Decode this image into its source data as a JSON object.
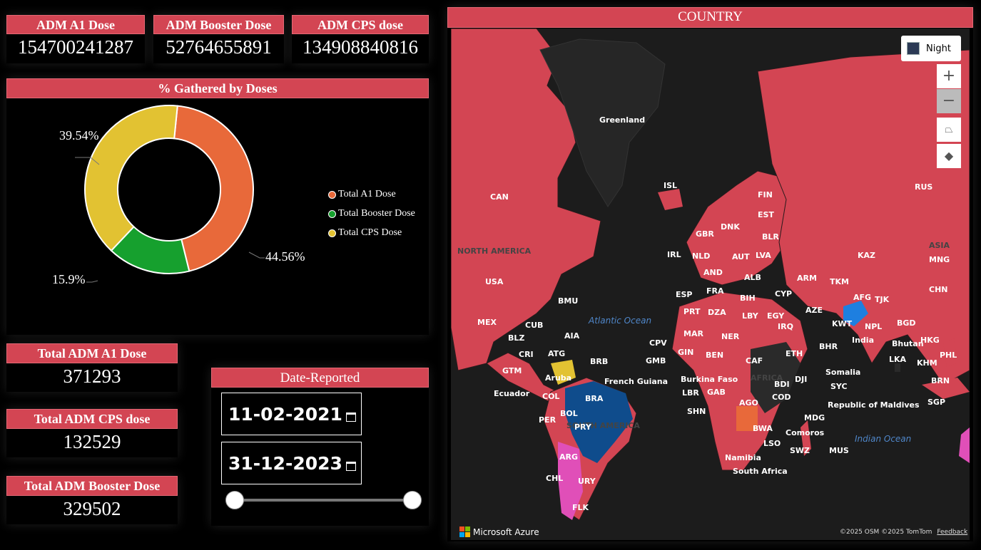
{
  "kpis_top": [
    {
      "label": "ADM A1 Dose",
      "value": "154700241287"
    },
    {
      "label": "ADM Booster Dose",
      "value": "52764655891"
    },
    {
      "label": "ADM CPS dose",
      "value": "134908840816"
    }
  ],
  "donut": {
    "title": "% Gathered by Doses",
    "legend": [
      "Total A1 Dose",
      "Total Booster Dose",
      "Total CPS Dose"
    ],
    "labels": {
      "a1": "44.56%",
      "booster": "15.9%",
      "cps": "39.54%"
    }
  },
  "chart_data": {
    "type": "pie",
    "title": "% Gathered by Doses",
    "categories": [
      "Total A1 Dose",
      "Total Booster Dose",
      "Total CPS Dose"
    ],
    "values": [
      44.56,
      15.9,
      39.54
    ],
    "colors": [
      "#e8693a",
      "#16a02e",
      "#e2c232"
    ],
    "legend": "right"
  },
  "kpis_small": [
    {
      "label": "Total ADM A1 Dose",
      "value": "371293"
    },
    {
      "label": "Total ADM CPS dose",
      "value": "132529"
    },
    {
      "label": "Total ADM Booster Dose",
      "value": "329502"
    }
  ],
  "date_filter": {
    "title": "Date-Reported",
    "start": "11-02-2021",
    "end": "31-12-2023"
  },
  "map": {
    "title": "COUNTRY",
    "style_button": "Night",
    "zoom_in": "+",
    "zoom_out": "−",
    "brand": "Microsoft Azure",
    "attribution": "©2025 OSM  ©2025 TomTom",
    "feedback": "Feedback",
    "oceans": [
      "Atlantic Ocean",
      "Indian Ocean"
    ],
    "regions": [
      "NORTH AMERICA",
      "SOUTH AMERICA",
      "AFRICA",
      "ASIA"
    ],
    "country_labels": [
      "Greenland",
      "CAN",
      "ISL",
      "FIN",
      "EST",
      "RUS",
      "DNK",
      "GBR",
      "BLR",
      "LVA",
      "NLD",
      "AUT",
      "KAZ",
      "MNG",
      "IRL",
      "AND",
      "ALB",
      "ARM",
      "TKM",
      "CHN",
      "USA",
      "ESP",
      "FRA",
      "BIH",
      "CYP",
      "AFG",
      "TJK",
      "BMU",
      "PRT",
      "DZA",
      "LBY",
      "EGY",
      "AZE",
      "KWT",
      "NPL",
      "BGD",
      "MEX",
      "CUB",
      "BLZ",
      "AIA",
      "MAR",
      "NER",
      "IRQ",
      "India",
      "HKG",
      "CPV",
      "BHR",
      "Bhutan",
      "CRI",
      "ATG",
      "BRB",
      "GIN",
      "BEN",
      "CAF",
      "ETH",
      "PHL",
      "GMB",
      "LKA",
      "KHM",
      "GTM",
      "Aruba",
      "French Guiana",
      "Burkina Faso",
      "DJI",
      "Somalia",
      "BRN",
      "BDI",
      "SYC",
      "Ecuador",
      "COL",
      "BRA",
      "LBR",
      "GAB",
      "COD",
      "SGP",
      "Republic of Maldives",
      "AGO",
      "SHN",
      "BOL",
      "PER",
      "MDG",
      "PRY",
      "BWA",
      "Comoros",
      "LSO",
      "SWZ",
      "MUS",
      "ARG",
      "Namibia",
      "South Africa",
      "CHL",
      "URY",
      "FLK"
    ]
  }
}
